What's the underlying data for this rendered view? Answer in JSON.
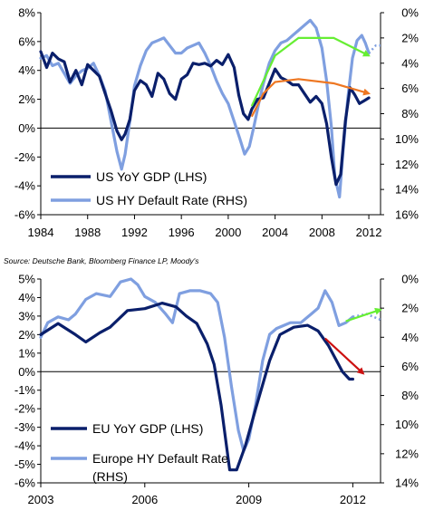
{
  "source": "Source: Deutsche Bank, Bloomberg Finance LP, Moody's",
  "colors": {
    "gdp": "#0a1f6b",
    "default_rate": "#7f9fe0",
    "green_arrow": "#66ee33",
    "orange_arrow": "#ee7722",
    "red_arrow": "#cc1111",
    "projection": "#7f9fe0"
  },
  "chart_data": [
    {
      "type": "line",
      "x_range": [
        1984,
        2013
      ],
      "x_ticks": [
        1984,
        1988,
        1992,
        1996,
        2000,
        2004,
        2008,
        2012
      ],
      "x_tick_labels": [
        "1984",
        "1988",
        "1992",
        "1996",
        "2000",
        "2004",
        "2008",
        "2012"
      ],
      "y_left": {
        "range": [
          -6,
          8
        ],
        "ticks": [
          -6,
          -4,
          -2,
          0,
          2,
          4,
          6,
          8
        ],
        "tick_labels": [
          "-6%",
          "-4%",
          "-2%",
          "0%",
          "2%",
          "4%",
          "6%",
          "8%"
        ]
      },
      "y_right": {
        "range": [
          16,
          0
        ],
        "inverted": true,
        "ticks": [
          0,
          2,
          4,
          6,
          8,
          10,
          12,
          14,
          16
        ],
        "tick_labels": [
          "0%",
          "2%",
          "4%",
          "6%",
          "8%",
          "10%",
          "12%",
          "14%",
          "16%"
        ]
      },
      "legend": [
        "US YoY GDP (LHS)",
        "US HY Default Rate (RHS)"
      ],
      "legend_position": "bottom-left",
      "series": [
        {
          "name": "US YoY GDP (LHS)",
          "axis": "left",
          "points": [
            [
              1984.0,
              5.3
            ],
            [
              1984.5,
              4.2
            ],
            [
              1985.0,
              5.2
            ],
            [
              1985.5,
              4.8
            ],
            [
              1986.0,
              4.6
            ],
            [
              1986.5,
              3.2
            ],
            [
              1987.0,
              4.0
            ],
            [
              1987.5,
              3.0
            ],
            [
              1988.0,
              4.4
            ],
            [
              1988.5,
              4.0
            ],
            [
              1989.0,
              3.6
            ],
            [
              1989.5,
              2.4
            ],
            [
              1990.0,
              1.2
            ],
            [
              1990.5,
              -0.2
            ],
            [
              1990.9,
              -0.8
            ],
            [
              1991.2,
              -0.4
            ],
            [
              1991.6,
              0.6
            ],
            [
              1992.0,
              2.6
            ],
            [
              1992.5,
              3.3
            ],
            [
              1993.0,
              3.0
            ],
            [
              1993.5,
              2.2
            ],
            [
              1994.0,
              3.8
            ],
            [
              1994.5,
              3.4
            ],
            [
              1995.0,
              2.4
            ],
            [
              1995.5,
              2.0
            ],
            [
              1996.0,
              3.4
            ],
            [
              1996.5,
              3.7
            ],
            [
              1997.0,
              4.5
            ],
            [
              1997.5,
              4.4
            ],
            [
              1998.0,
              4.5
            ],
            [
              1998.5,
              4.3
            ],
            [
              1999.0,
              4.7
            ],
            [
              1999.5,
              4.4
            ],
            [
              2000.0,
              5.1
            ],
            [
              2000.5,
              4.2
            ],
            [
              2000.9,
              2.3
            ],
            [
              2001.3,
              1.0
            ],
            [
              2001.7,
              0.6
            ],
            [
              2002.0,
              1.3
            ],
            [
              2002.5,
              2.0
            ],
            [
              2003.0,
              2.1
            ],
            [
              2003.5,
              3.1
            ],
            [
              2004.0,
              4.1
            ],
            [
              2004.5,
              3.5
            ],
            [
              2005.0,
              3.3
            ],
            [
              2005.5,
              3.0
            ],
            [
              2006.0,
              3.0
            ],
            [
              2006.5,
              2.4
            ],
            [
              2007.0,
              1.8
            ],
            [
              2007.5,
              2.2
            ],
            [
              2008.0,
              1.7
            ],
            [
              2008.4,
              0.3
            ],
            [
              2008.8,
              -2.0
            ],
            [
              2009.2,
              -3.9
            ],
            [
              2009.6,
              -3.2
            ],
            [
              2010.0,
              0.5
            ],
            [
              2010.4,
              2.8
            ],
            [
              2010.8,
              2.3
            ],
            [
              2011.2,
              1.7
            ],
            [
              2011.6,
              1.9
            ],
            [
              2012.0,
              2.1
            ]
          ]
        },
        {
          "name": "US HY Default Rate (RHS)",
          "axis": "right",
          "points": [
            [
              1984.0,
              3.6
            ],
            [
              1984.5,
              3.4
            ],
            [
              1985.0,
              4.2
            ],
            [
              1985.5,
              4.0
            ],
            [
              1986.0,
              4.8
            ],
            [
              1986.5,
              5.6
            ],
            [
              1987.0,
              5.0
            ],
            [
              1987.5,
              4.6
            ],
            [
              1988.0,
              4.4
            ],
            [
              1988.5,
              4.0
            ],
            [
              1989.0,
              5.0
            ],
            [
              1989.5,
              6.2
            ],
            [
              1990.0,
              8.6
            ],
            [
              1990.5,
              11.0
            ],
            [
              1990.9,
              12.4
            ],
            [
              1991.2,
              11.2
            ],
            [
              1991.6,
              8.6
            ],
            [
              1992.0,
              5.8
            ],
            [
              1992.5,
              4.2
            ],
            [
              1993.0,
              3.0
            ],
            [
              1993.5,
              2.4
            ],
            [
              1994.0,
              2.2
            ],
            [
              1994.5,
              2.0
            ],
            [
              1995.0,
              2.6
            ],
            [
              1995.5,
              3.2
            ],
            [
              1996.0,
              3.2
            ],
            [
              1996.5,
              2.8
            ],
            [
              1997.0,
              2.6
            ],
            [
              1997.5,
              2.4
            ],
            [
              1998.0,
              3.2
            ],
            [
              1998.5,
              4.2
            ],
            [
              1999.0,
              5.4
            ],
            [
              1999.5,
              6.4
            ],
            [
              2000.0,
              7.2
            ],
            [
              2000.5,
              8.6
            ],
            [
              2001.0,
              10.0
            ],
            [
              2001.4,
              11.2
            ],
            [
              2001.8,
              10.6
            ],
            [
              2002.2,
              9.0
            ],
            [
              2002.6,
              7.2
            ],
            [
              2003.0,
              5.6
            ],
            [
              2003.5,
              4.0
            ],
            [
              2004.0,
              3.0
            ],
            [
              2004.5,
              2.4
            ],
            [
              2005.0,
              2.2
            ],
            [
              2005.5,
              1.8
            ],
            [
              2006.0,
              1.4
            ],
            [
              2006.5,
              1.0
            ],
            [
              2007.0,
              0.6
            ],
            [
              2007.5,
              1.2
            ],
            [
              2008.0,
              2.8
            ],
            [
              2008.4,
              5.4
            ],
            [
              2008.8,
              9.0
            ],
            [
              2009.1,
              13.0
            ],
            [
              2009.5,
              14.6
            ],
            [
              2009.8,
              11.0
            ],
            [
              2010.2,
              6.8
            ],
            [
              2010.6,
              3.6
            ],
            [
              2011.0,
              2.2
            ],
            [
              2011.4,
              1.8
            ],
            [
              2011.7,
              2.4
            ],
            [
              2012.0,
              3.2
            ]
          ]
        }
      ],
      "projection": {
        "axis": "right",
        "points": [
          [
            2012.0,
            3.2
          ],
          [
            2012.6,
            2.6
          ],
          [
            2013.0,
            2.6
          ]
        ]
      },
      "arrows": [
        {
          "color": "green",
          "axis": "right",
          "points": [
            [
              2002.0,
              7.4
            ],
            [
              2004.0,
              3.4
            ],
            [
              2006.0,
              2.0
            ],
            [
              2009.0,
              2.0
            ],
            [
              2012.0,
              3.4
            ]
          ]
        },
        {
          "color": "orange",
          "axis": "left",
          "points": [
            [
              2002.0,
              0.8
            ],
            [
              2003.0,
              2.4
            ],
            [
              2004.0,
              3.2
            ],
            [
              2006.0,
              3.4
            ],
            [
              2009.0,
              3.1
            ],
            [
              2012.0,
              2.4
            ]
          ]
        }
      ]
    },
    {
      "type": "line",
      "x_range": [
        2003,
        2012.8
      ],
      "x_ticks": [
        2003,
        2006,
        2009,
        2012
      ],
      "x_tick_labels": [
        "2003",
        "2006",
        "2009",
        "2012"
      ],
      "y_left": {
        "range": [
          -6,
          5
        ],
        "ticks": [
          -6,
          -5,
          -4,
          -3,
          -2,
          -1,
          0,
          1,
          2,
          3,
          4,
          5
        ],
        "tick_labels": [
          "-6%",
          "-5%",
          "-4%",
          "-3%",
          "-2%",
          "-1%",
          "0%",
          "1%",
          "2%",
          "3%",
          "4%",
          "5%"
        ]
      },
      "y_right": {
        "range": [
          14,
          0
        ],
        "inverted": true,
        "ticks": [
          0,
          2,
          4,
          6,
          8,
          10,
          12,
          14
        ],
        "tick_labels": [
          "0%",
          "2%",
          "4%",
          "6%",
          "8%",
          "10%",
          "12%",
          "14%"
        ]
      },
      "legend": [
        "EU YoY GDP (LHS)",
        "Europe HY Default Rate (RHS)"
      ],
      "legend_position": "bottom-left",
      "series": [
        {
          "name": "EU YoY GDP (LHS)",
          "axis": "left",
          "points": [
            [
              2003.0,
              2.0
            ],
            [
              2003.5,
              2.6
            ],
            [
              2004.0,
              2.0
            ],
            [
              2004.3,
              1.6
            ],
            [
              2004.7,
              2.1
            ],
            [
              2005.0,
              2.4
            ],
            [
              2005.5,
              3.3
            ],
            [
              2006.0,
              3.4
            ],
            [
              2006.5,
              3.7
            ],
            [
              2006.9,
              3.5
            ],
            [
              2007.2,
              3.0
            ],
            [
              2007.5,
              2.6
            ],
            [
              2007.8,
              1.5
            ],
            [
              2008.0,
              0.4
            ],
            [
              2008.2,
              -1.8
            ],
            [
              2008.45,
              -5.3
            ],
            [
              2008.65,
              -5.3
            ],
            [
              2008.9,
              -4.0
            ],
            [
              2009.2,
              -2.0
            ],
            [
              2009.6,
              0.6
            ],
            [
              2009.9,
              2.0
            ],
            [
              2010.3,
              2.4
            ],
            [
              2010.7,
              2.5
            ],
            [
              2011.0,
              2.2
            ],
            [
              2011.3,
              1.4
            ],
            [
              2011.7,
              0.0
            ],
            [
              2011.9,
              -0.4
            ],
            [
              2012.0,
              -0.4
            ]
          ]
        },
        {
          "name": "Europe HY Default Rate (RHS)",
          "axis": "right",
          "points": [
            [
              2003.0,
              4.0
            ],
            [
              2003.2,
              3.0
            ],
            [
              2003.5,
              2.6
            ],
            [
              2003.8,
              2.8
            ],
            [
              2004.0,
              2.4
            ],
            [
              2004.3,
              1.4
            ],
            [
              2004.6,
              1.0
            ],
            [
              2005.0,
              1.2
            ],
            [
              2005.3,
              0.2
            ],
            [
              2005.6,
              0.0
            ],
            [
              2005.8,
              0.4
            ],
            [
              2006.0,
              1.2
            ],
            [
              2006.3,
              1.6
            ],
            [
              2006.6,
              2.4
            ],
            [
              2006.8,
              3.0
            ],
            [
              2007.0,
              1.0
            ],
            [
              2007.3,
              0.8
            ],
            [
              2007.6,
              0.8
            ],
            [
              2007.9,
              1.0
            ],
            [
              2008.1,
              1.6
            ],
            [
              2008.3,
              4.0
            ],
            [
              2008.5,
              7.4
            ],
            [
              2008.7,
              10.4
            ],
            [
              2008.85,
              11.8
            ],
            [
              2009.0,
              11.0
            ],
            [
              2009.2,
              8.6
            ],
            [
              2009.4,
              5.6
            ],
            [
              2009.6,
              3.8
            ],
            [
              2009.8,
              3.4
            ],
            [
              2010.0,
              3.2
            ],
            [
              2010.2,
              3.0
            ],
            [
              2010.5,
              3.0
            ],
            [
              2010.8,
              2.4
            ],
            [
              2011.0,
              2.0
            ],
            [
              2011.2,
              0.8
            ],
            [
              2011.4,
              1.6
            ],
            [
              2011.6,
              3.2
            ],
            [
              2011.8,
              3.0
            ],
            [
              2012.0,
              2.6
            ]
          ]
        }
      ],
      "projection": {
        "axis": "right",
        "points": [
          [
            2012.0,
            2.6
          ],
          [
            2012.4,
            2.4
          ],
          [
            2012.8,
            2.8
          ]
        ]
      },
      "arrows": [
        {
          "color": "green",
          "axis": "right",
          "points": [
            [
              2011.8,
              2.9
            ],
            [
              2012.8,
              2.1
            ]
          ]
        },
        {
          "color": "red",
          "axis": "left",
          "points": [
            [
              2011.2,
              1.8
            ],
            [
              2012.3,
              -0.1
            ]
          ]
        }
      ]
    }
  ]
}
